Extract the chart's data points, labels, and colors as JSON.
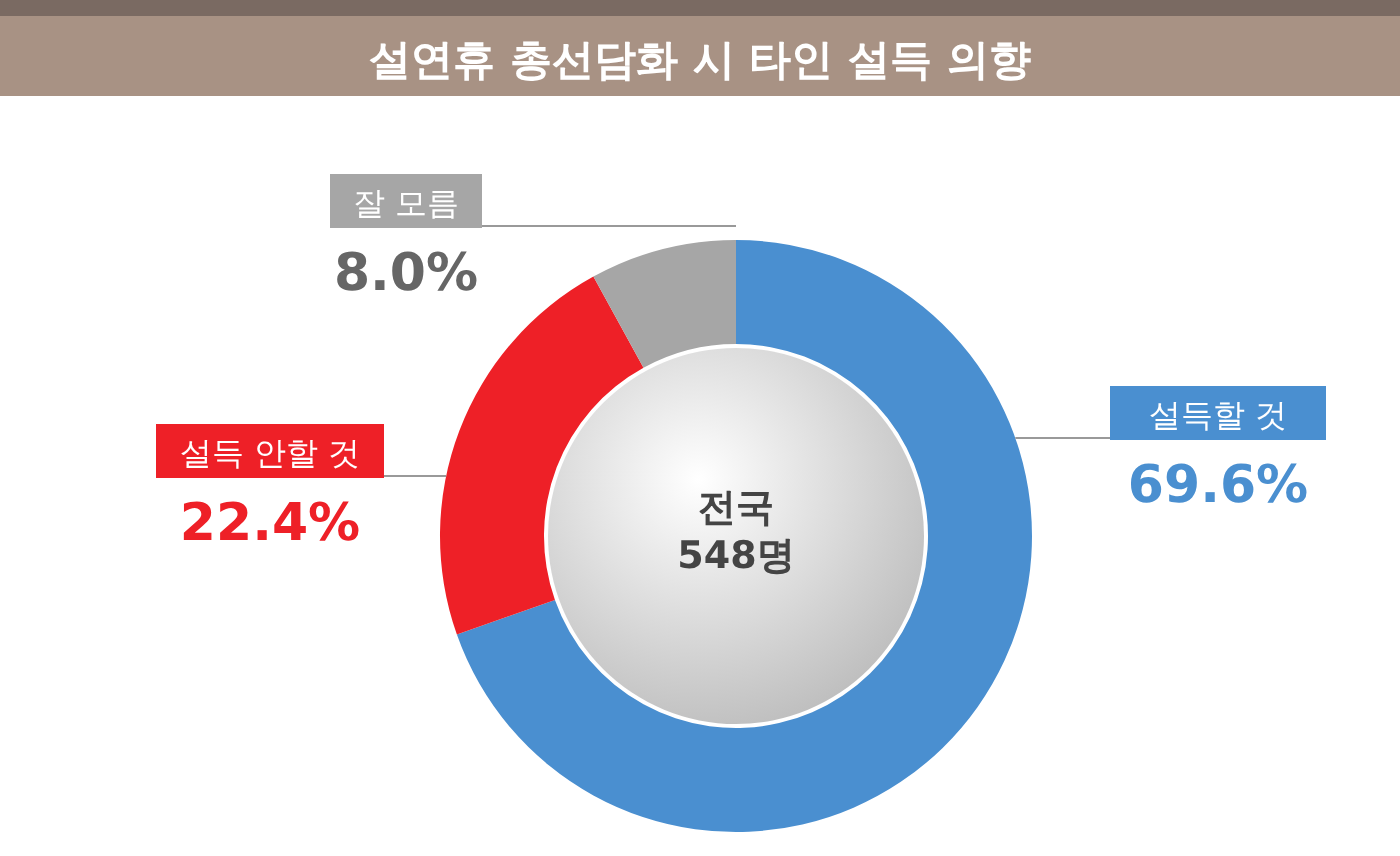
{
  "chart_data": {
    "type": "donut",
    "title": "설연휴 총선담화 시 타인 설득 의향",
    "categories": [
      "설득할 것",
      "설득 안할 것",
      "잘 모름"
    ],
    "values": [
      69.6,
      22.4,
      8.0
    ],
    "colors": [
      "#4a8fd0",
      "#ee2027",
      "#a6a6a6"
    ],
    "value_labels": [
      "69.6%",
      "22.4%",
      "8.0%"
    ],
    "annotations": [
      "전국\n548명"
    ]
  }
}
